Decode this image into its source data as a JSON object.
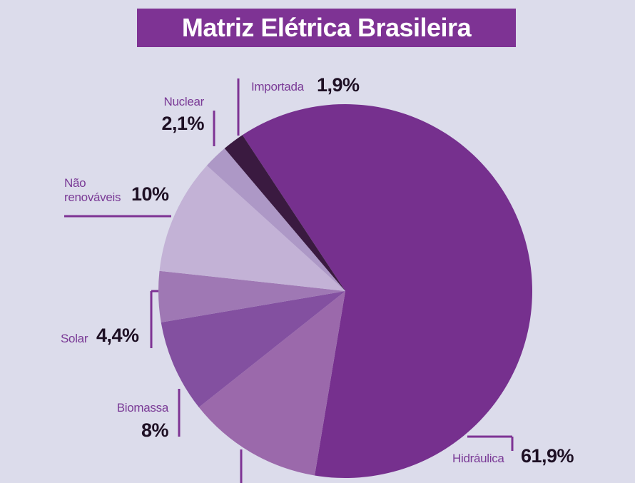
{
  "chart_data": {
    "type": "pie",
    "title": "Matriz Elétrica Brasileira",
    "categories": [
      "Hidráulica",
      null,
      "Biomassa",
      "Solar",
      "Não renováveis",
      "Nuclear",
      "Importada"
    ],
    "values": [
      61.9,
      11.7,
      8,
      4.4,
      10,
      2.1,
      1.9
    ],
    "value_labels": [
      "61,9%",
      null,
      "8%",
      "4,4%",
      "10%",
      "2,1%",
      "1,9%"
    ],
    "colors": [
      "#76308e",
      "#9b69ab",
      "#8350a0",
      "#9f78b4",
      "#c3b2d6",
      "#ad98c6",
      "#3a1a40"
    ]
  }
}
